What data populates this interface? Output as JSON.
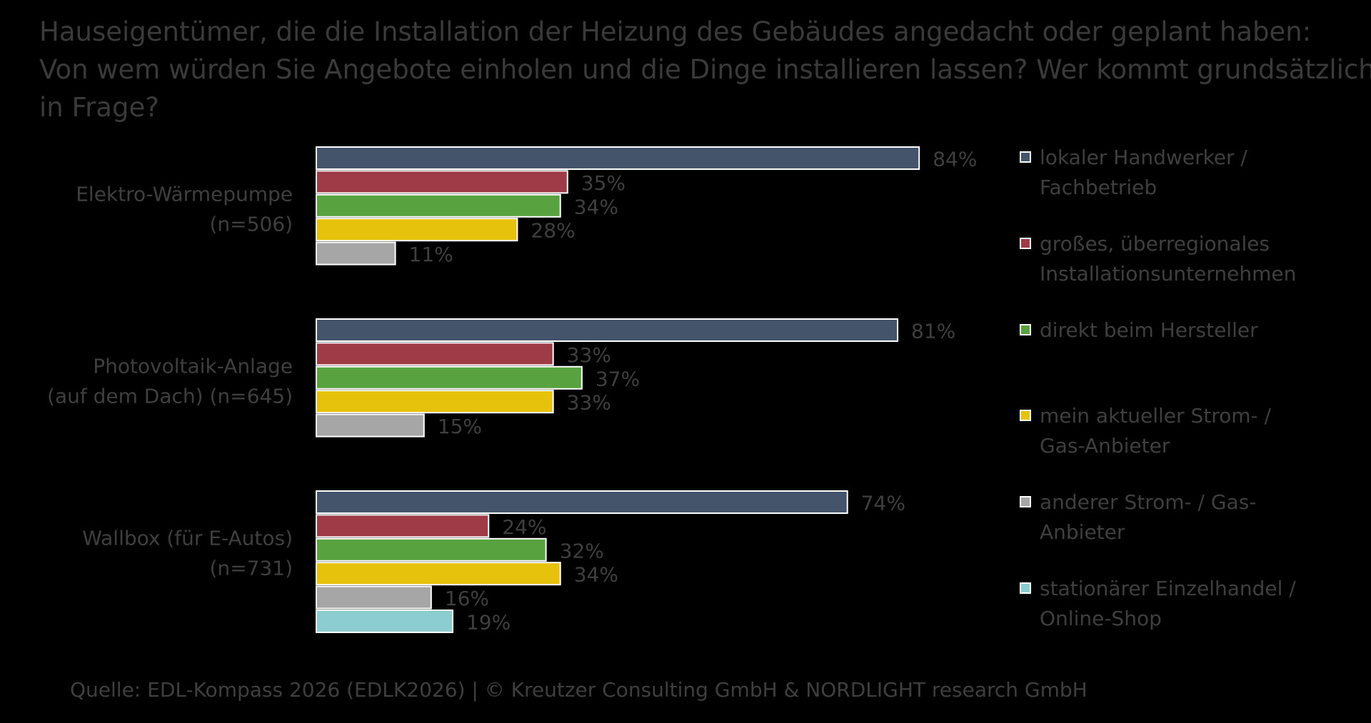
{
  "title": {
    "line1": "Hauseigentümer, die die Installation der Heizung des Gebäudes angedacht oder geplant haben:",
    "line2": "Von wem würden Sie Angebote einholen und die Dinge installieren lassen? Wer kommt grundsätzlich",
    "line3": "in Frage?"
  },
  "source": "Quelle: EDL-Kompass 2026 (EDLK2026) | © Kreutzer Consulting GmbH & NORDLIGHT research GmbH",
  "colors": {
    "background": "#000000",
    "text": "#3f3f3f",
    "bar_border": "#ffffff"
  },
  "chart_data": {
    "type": "bar",
    "orientation": "horizontal",
    "value_unit": "%",
    "xlim": [
      0,
      100
    ],
    "grid": false,
    "legend_position": "right",
    "series": [
      {
        "name": "lokaler Handwerker / Fachbetrieb",
        "color": "#44546a"
      },
      {
        "name": "großes, überregionales Installationsunternehmen",
        "color": "#9e3b47"
      },
      {
        "name": "direkt beim Hersteller",
        "color": "#58a240"
      },
      {
        "name": "mein aktueller Strom- / Gas-Anbieter",
        "color": "#e6c20c"
      },
      {
        "name": "anderer Strom- / Gas-Anbieter",
        "color": "#a6a6a6"
      },
      {
        "name": "stationärer Einzelhandel / Online-Shop",
        "color": "#8ccdd2"
      }
    ],
    "groups": [
      {
        "label": "Elektro-Wärmepumpe",
        "n": "(n=506)",
        "values": [
          84,
          35,
          34,
          28,
          11
        ],
        "labels": [
          "84%",
          "35%",
          "34%",
          "28%",
          "11%"
        ]
      },
      {
        "label": "Photovoltaik-Anlage",
        "n": "(auf dem Dach) (n=645)",
        "values": [
          81,
          33,
          37,
          33,
          15
        ],
        "labels": [
          "81%",
          "33%",
          "37%",
          "33%",
          "15%"
        ]
      },
      {
        "label": "Wallbox (für E-Autos)",
        "n": "(n=731)",
        "values": [
          74,
          24,
          32,
          34,
          16,
          19
        ],
        "labels": [
          "74%",
          "24%",
          "32%",
          "34%",
          "16%",
          "19%"
        ]
      }
    ]
  },
  "legend": {
    "items": [
      {
        "line1": "lokaler Handwerker /",
        "line2": "Fachbetrieb"
      },
      {
        "line1": "großes, überregionales",
        "line2": "Installationsunternehmen"
      },
      {
        "line1": "direkt beim Hersteller",
        "line2": ""
      },
      {
        "line1": "mein aktueller Strom- /",
        "line2": "Gas-Anbieter"
      },
      {
        "line1": "anderer Strom- / Gas-",
        "line2": "Anbieter"
      },
      {
        "line1": "stationärer Einzelhandel /",
        "line2": "Online-Shop"
      }
    ]
  }
}
